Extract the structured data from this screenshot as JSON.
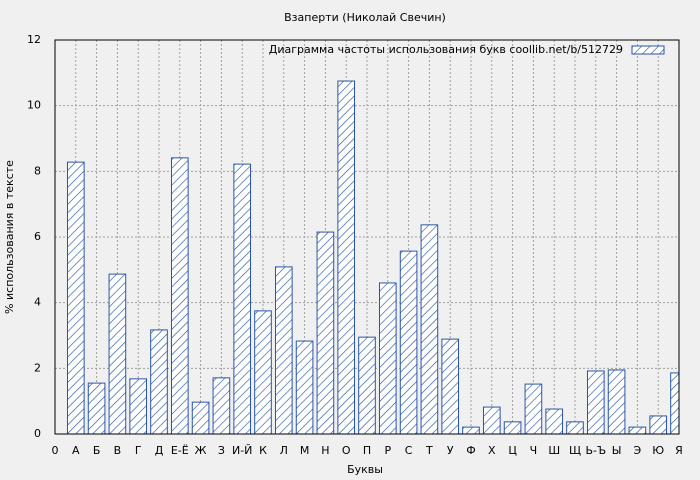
{
  "chart_data": {
    "type": "bar",
    "title": "Взаперти (Николай Свечин)",
    "x_label": "Буквы",
    "y_label": "% использования в тексте",
    "x": [
      1,
      2,
      3,
      4,
      5,
      6,
      7,
      8,
      9,
      10,
      11,
      12,
      13,
      14,
      15,
      16,
      17,
      18,
      19,
      20,
      21,
      22,
      23,
      24,
      25,
      26,
      27,
      28,
      29,
      30
    ],
    "series": [
      {
        "name": "Диаграмма частоты использования букв  coollib.net/b/512729",
        "color": "#2a56a8",
        "values": [
          8.28,
          1.55,
          4.87,
          1.68,
          3.17,
          8.41,
          0.97,
          1.71,
          8.22,
          3.75,
          5.09,
          2.83,
          6.15,
          10.75,
          2.95,
          4.6,
          5.57,
          6.37,
          2.89,
          0.21,
          0.82,
          0.37,
          1.52,
          0.76,
          0.37,
          1.92,
          1.95,
          0.21,
          0.55,
          1.86
        ]
      }
    ],
    "xlim": [
      0,
      30
    ],
    "xticks": [
      0,
      {
        "value": 1,
        "label": "А"
      },
      {
        "value": 2,
        "label": "Б"
      },
      {
        "value": 3,
        "label": "В"
      },
      {
        "value": 4,
        "label": "Г"
      },
      {
        "value": 5,
        "label": "Д"
      },
      {
        "value": 6,
        "label": "Е-Ё"
      },
      {
        "value": 7,
        "label": "Ж"
      },
      {
        "value": 8,
        "label": "З"
      },
      {
        "value": 9,
        "label": "И-Й"
      },
      {
        "value": 10,
        "label": "К"
      },
      {
        "value": 11,
        "label": "Л"
      },
      {
        "value": 12,
        "label": "М"
      },
      {
        "value": 13,
        "label": "Н"
      },
      {
        "value": 14,
        "label": "О"
      },
      {
        "value": 15,
        "label": "П"
      },
      {
        "value": 16,
        "label": "Р"
      },
      {
        "value": 17,
        "label": "С"
      },
      {
        "value": 18,
        "label": "Т"
      },
      {
        "value": 19,
        "label": "У"
      },
      {
        "value": 20,
        "label": "Ф"
      },
      {
        "value": 21,
        "label": "Х"
      },
      {
        "value": 22,
        "label": "Ц"
      },
      {
        "value": 23,
        "label": "Ч"
      },
      {
        "value": 24,
        "label": "Ш"
      },
      {
        "value": 25,
        "label": "Щ"
      },
      {
        "value": 26,
        "label": "Ь-Ъ"
      },
      {
        "value": 27,
        "label": "Ы"
      },
      {
        "value": 28,
        "label": "Э"
      },
      {
        "value": 29,
        "label": "Ю"
      },
      {
        "value": 30,
        "label": "Я"
      }
    ],
    "ylim": [
      0,
      12
    ],
    "yticks": [
      0,
      2,
      4,
      6,
      8,
      10,
      12
    ],
    "grid": true,
    "legend": "top-right"
  }
}
